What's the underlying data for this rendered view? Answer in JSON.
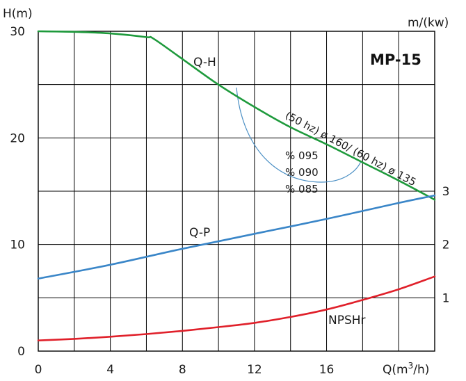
{
  "chart_data": {
    "type": "line",
    "title": "MP-15",
    "y_left_label": "H(m)",
    "y_right_label": "m/(kw)",
    "x_label_text": "Q(m",
    "x_label_sup": "3",
    "x_label_tail": "/h)",
    "x_range": [
      0,
      22
    ],
    "x_ticks": [
      "0",
      "4",
      "8",
      "12",
      "16"
    ],
    "y_left_range": [
      0,
      30
    ],
    "y_left_ticks": [
      "0",
      "10",
      "20",
      "30"
    ],
    "y_right_ticks": [
      "1",
      "2",
      "3"
    ],
    "grid": true,
    "colors": {
      "qh": "#1e9a3c",
      "qp": "#3a86c8",
      "npsh": "#e0202a",
      "eff": "#4a8fc4",
      "grid": "#000000"
    },
    "series": [
      {
        "name": "Q-H",
        "x": [
          0,
          2,
          4,
          6,
          6.4,
          8,
          10,
          12,
          14,
          16,
          18,
          20,
          22
        ],
        "y": [
          30,
          29.95,
          29.8,
          29.45,
          29.3,
          27.4,
          25.0,
          22.9,
          21.0,
          19.4,
          17.7,
          16.0,
          14.2
        ]
      },
      {
        "name": "Q-P",
        "x": [
          0,
          4,
          8,
          12,
          16,
          20,
          22
        ],
        "y": [
          6.8,
          8.1,
          9.6,
          11.0,
          12.4,
          13.9,
          14.6
        ]
      },
      {
        "name": "NPSHr",
        "x": [
          0,
          2,
          4,
          6,
          8,
          10,
          12,
          14,
          16,
          18,
          20,
          22
        ],
        "y": [
          1.0,
          1.15,
          1.35,
          1.6,
          1.9,
          2.25,
          2.65,
          3.2,
          3.9,
          4.8,
          5.8,
          7.0
        ]
      }
    ],
    "efficiency_labels": [
      "% 095",
      "% 090",
      "% 085"
    ],
    "impeller_annotation": "(50 hz) ø 160/ (60 hz) ø 135"
  }
}
